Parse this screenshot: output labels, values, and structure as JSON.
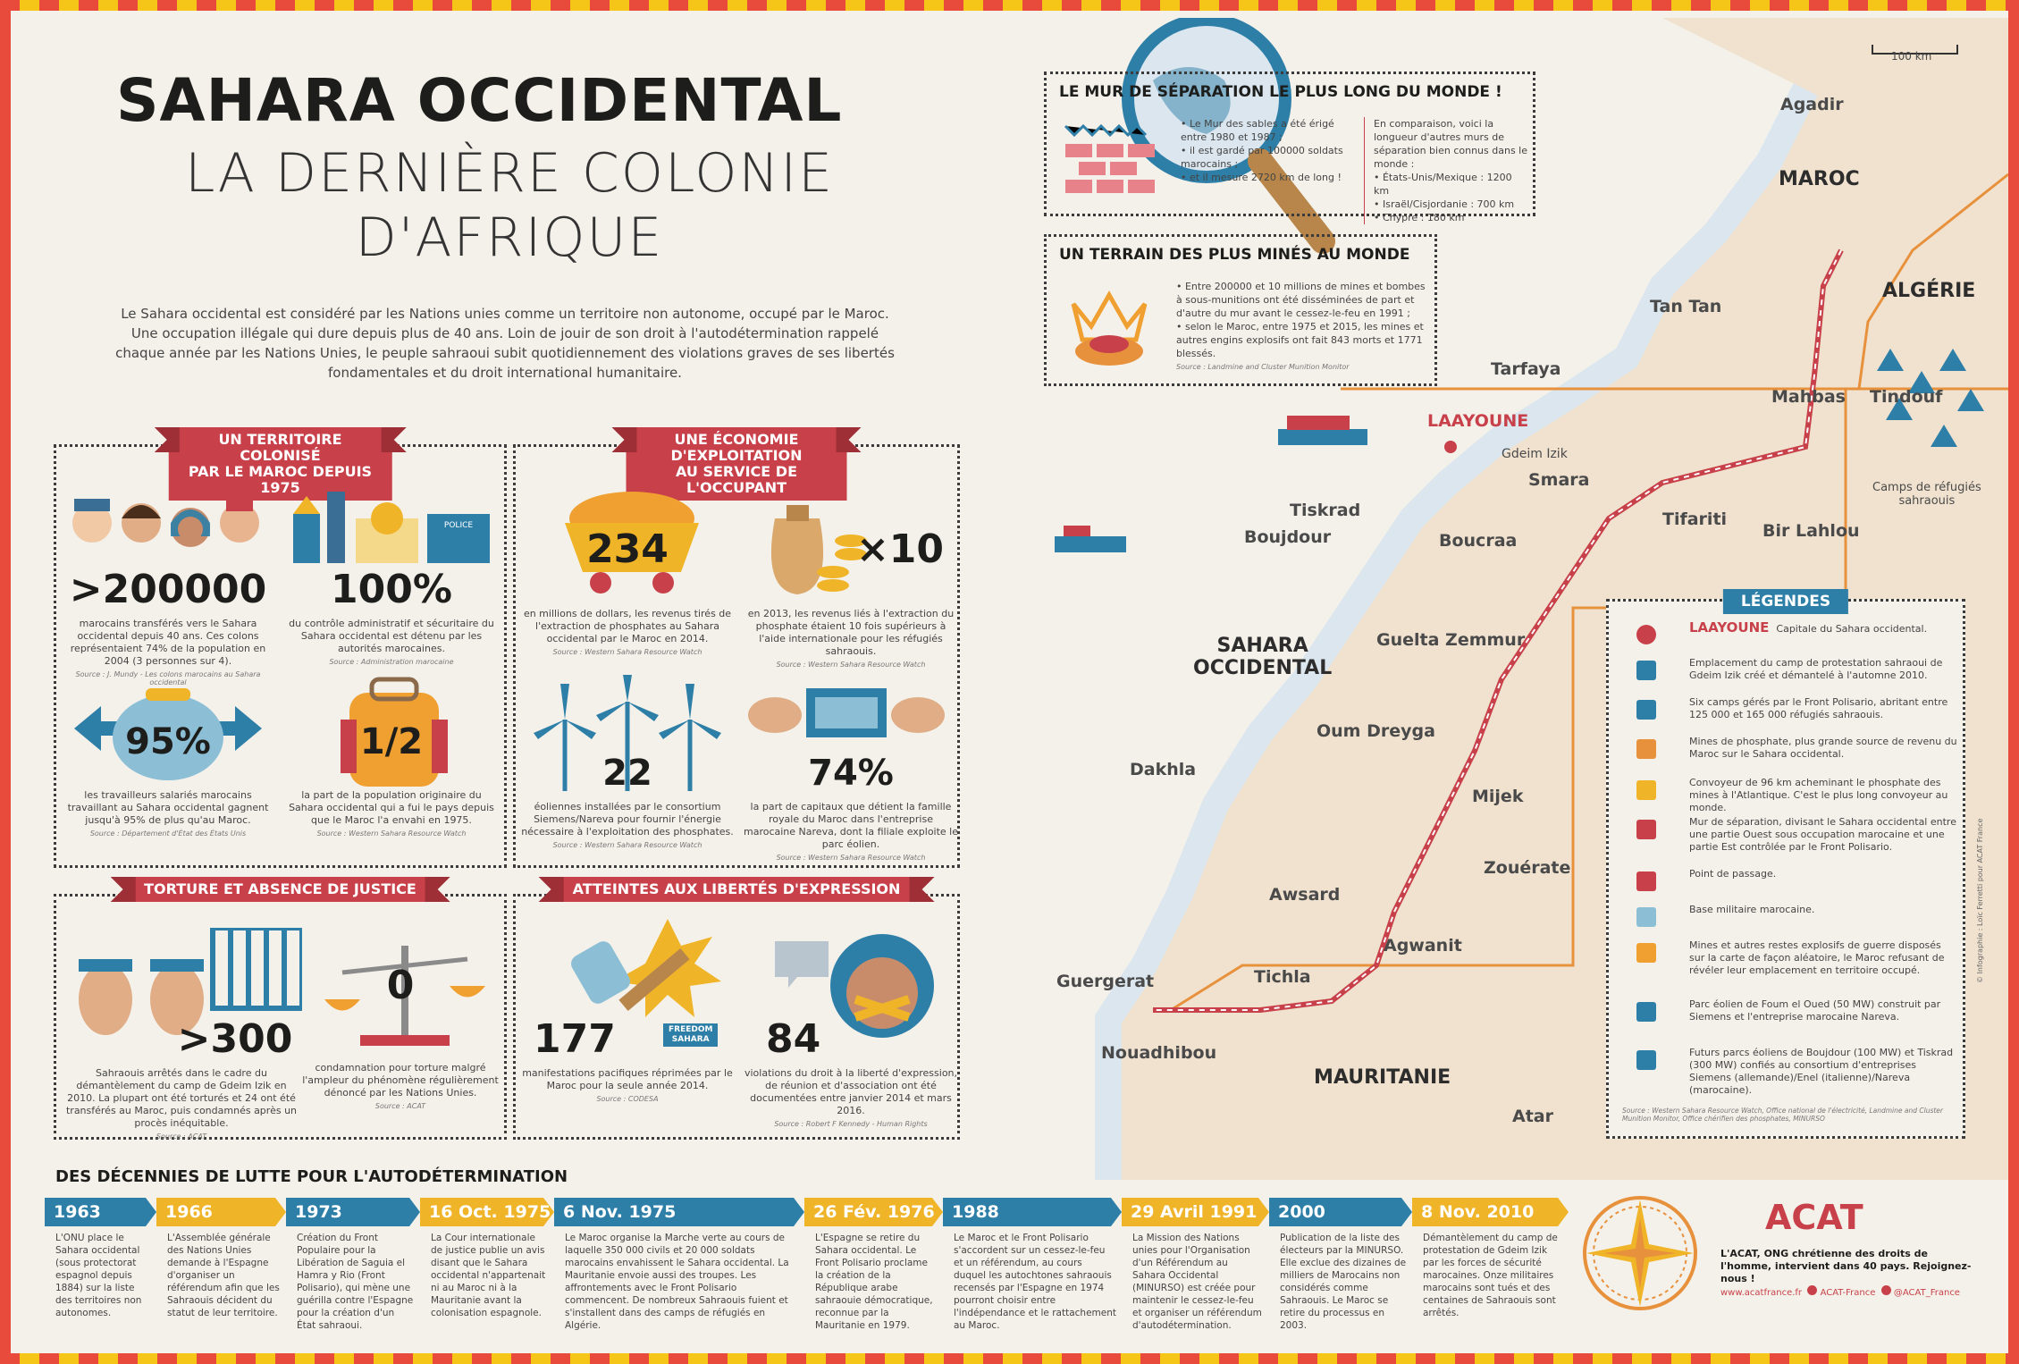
{
  "title": {
    "line1": "SAHARA OCCIDENTAL",
    "line2": "LA DERNIÈRE COLONIE",
    "line3": "D'AFRIQUE"
  },
  "intro": "Le Sahara occidental est considéré par les Nations unies comme un territoire non autonome, occupé par le Maroc. Une occupation illégale qui dure depuis plus de 40 ans. Loin de jouir de son droit à l'autodétermination rappelé chaque année par les Nations Unies, le peuple sahraoui subit quotidiennement des violations graves de ses libertés fondamentales et du droit international humanitaire.",
  "colors": {
    "red": "#c8414a",
    "blue": "#2e7fa8",
    "yellow": "#f0b429",
    "sand": "#f0e2cf",
    "ink": "#1d1d1b"
  },
  "box1": {
    "title": "UN TERRITOIRE COLONISÉ\nPAR LE MAROC DEPUIS 1975",
    "s1": {
      "num": ">200000",
      "text": "marocains transférés vers le Sahara occidental depuis 40 ans. Ces colons représentaient 74% de la population en 2004 (3 personnes sur 4).",
      "src": "Source : J. Mundy - Les colons marocains au Sahara occidental"
    },
    "s2": {
      "num": "100%",
      "text": "du contrôle administratif et sécuritaire du Sahara occidental est détenu par les autorités marocaines.",
      "src": "Source : Administration marocaine"
    },
    "s3": {
      "num": "95%",
      "text": "les travailleurs salariés marocains travaillant au Sahara occidental gagnent jusqu'à 95% de plus qu'au Maroc.",
      "src": "Source : Département d'État des États Unis"
    },
    "s4": {
      "num": "1/2",
      "text": "la part de la population originaire du Sahara occidental qui a fui le pays depuis que le Maroc l'a envahi en 1975.",
      "src": "Source : Western Sahara Resource Watch"
    },
    "police": "POLICE"
  },
  "box2": {
    "title": "UNE ÉCONOMIE D'EXPLOITATION\nAU SERVICE DE L'OCCUPANT",
    "s1": {
      "num": "234",
      "text": "en millions de dollars, les revenus tirés de l'extraction de phosphates au Sahara occidental par le Maroc en 2014.",
      "src": "Source : Western Sahara Resource Watch"
    },
    "s2": {
      "num": "×10",
      "text": "en 2013, les revenus liés à l'extraction du phosphate étaient 10 fois supérieurs à l'aide internationale pour les réfugiés sahraouis.",
      "src": "Source : Western Sahara Resource Watch"
    },
    "s3": {
      "num": "22",
      "text": "éoliennes installées par le consortium Siemens/Nareva pour fournir l'énergie nécessaire à l'exploitation des phosphates.",
      "src": "Source : Western Sahara Resource Watch"
    },
    "s4": {
      "num": "74%",
      "text": "la part de capitaux que détient la famille royale du Maroc dans l'entreprise marocaine Nareva, dont la filiale exploite le parc éolien.",
      "src": "Source : Western Sahara Resource Watch"
    }
  },
  "box3": {
    "title": "TORTURE ET ABSENCE DE JUSTICE",
    "s1": {
      "num": ">300",
      "text": "Sahraouis arrêtés dans le cadre du démantèlement du camp de Gdeim Izik en 2010. La plupart ont été torturés et 24 ont été transférés au Maroc, puis condamnés après un procès inéquitable.",
      "src": "Source : ACAT"
    },
    "s2": {
      "num": "0",
      "text": "condamnation pour torture malgré l'ampleur du phénomène régulièrement dénoncé par les Nations Unies.",
      "src": "Source : ACAT"
    }
  },
  "box4": {
    "title": "ATTEINTES AUX LIBERTÉS D'EXPRESSION",
    "s1": {
      "num": "177",
      "text": "manifestations pacifiques réprimées par le Maroc pour la seule année 2014.",
      "src": "Source : CODESA"
    },
    "s2": {
      "num": "84",
      "text": "violations du droit à la liberté d'expression, de réunion et d'association ont été documentées entre janvier 2014 et mars 2016.",
      "src": "Source : Robert F Kennedy - Human Rights"
    },
    "sign": "FREEDOM\nSAHARA"
  },
  "wall": {
    "title": "LE MUR DE SÉPARATION LE PLUS LONG DU MONDE !",
    "b1": "• Le Mur des sables a été érigé entre 1980 et 1987 ;",
    "b2": "• il est gardé par 100000 soldats marocains ;",
    "b3": "• et il mesure 2720 km de long !",
    "c0": "En comparaison, voici la longueur d'autres murs de séparation bien connus dans le monde :",
    "c1": "• États-Unis/Mexique : 1200 km",
    "c2": "• Israël/Cisjordanie : 700 km",
    "c3": "• Chypre : 180 km"
  },
  "mines": {
    "title": "UN TERRAIN DES PLUS MINÉS AU MONDE",
    "b1": "• Entre 200000 et 10 millions de mines et bombes à sous-munitions ont été disséminées de part et d'autre du mur avant le cessez-le-feu en 1991 ;",
    "b2": "• selon le Maroc, entre 1975 et 2015, les mines et autres engins explosifs ont fait 843 morts et 1771 blessés.",
    "src": "Source : Landmine and Cluster Munition Monitor"
  },
  "map": {
    "scale": "100 km",
    "countries": {
      "maroc": "MAROC",
      "algerie": "ALGÉRIE",
      "sahara": "SAHARA\nOCCIDENTAL",
      "mauritanie": "MAURITANIE"
    },
    "capital": "LAAYOUNE",
    "cities": [
      "Agadir",
      "Tan Tan",
      "Tarfaya",
      "Mahbas",
      "Tindouf",
      "Gdeim Izik",
      "Smara",
      "Tiskrad",
      "Boujdour",
      "Boucraa",
      "Tifariti",
      "Bir Lahlou",
      "Guelta Zemmur",
      "Oum Dreyga",
      "Dakhla",
      "Mijek",
      "Zouérate",
      "Awsard",
      "Agwanit",
      "Guergerat",
      "Tichla",
      "Nouadhibou",
      "Atar"
    ],
    "camps": "Camps de réfugiés\nsahraouis"
  },
  "legend": {
    "title": "LÉGENDES",
    "items": [
      {
        "name": "capital-dot",
        "label": "LAAYOUNE",
        "text": "Capitale du Sahara occidental."
      },
      {
        "name": "protest-camp",
        "text": "Emplacement du camp de protestation sahraoui de Gdeim Izik créé et démantelé à l'automne 2010."
      },
      {
        "name": "refugee-camps",
        "text": "Six camps gérés par le Front Polisario, abritant entre 125 000 et 165 000 réfugiés sahraouis."
      },
      {
        "name": "phosphate-mines",
        "text": "Mines de phosphate, plus grande source de revenu du Maroc sur le Sahara occidental."
      },
      {
        "name": "conveyor",
        "text": "Convoyeur de 96 km acheminant le phosphate des mines à l'Atlantique. C'est le plus long convoyeur au monde."
      },
      {
        "name": "wall",
        "text": "Mur de séparation, divisant le Sahara occidental entre une partie Ouest sous occupation marocaine et une partie Est contrôlée par le Front Polisario."
      },
      {
        "name": "crossing",
        "text": "Point de passage."
      },
      {
        "name": "military-base",
        "text": "Base militaire marocaine."
      },
      {
        "name": "mines",
        "text": "Mines et autres restes explosifs de guerre disposés sur la carte de façon aléatoire, le Maroc refusant de révéler leur emplacement en territoire occupé."
      },
      {
        "name": "wind-farm",
        "text": "Parc éolien de Foum el Oued (50 MW) construit par Siemens et l'entreprise marocaine Nareva."
      },
      {
        "name": "future-wind",
        "text": "Futurs parcs éoliens de Boujdour (100 MW) et Tiskrad (300 MW) confiés au consortium d'entreprises Siemens (allemande)/Enel (italienne)/Nareva (marocaine)."
      }
    ],
    "src": "Source : Western Sahara Resource Watch, Office national de l'électricité, Landmine and Cluster Munition Monitor, Office chérifien des phosphates, MINURSO"
  },
  "timeline": {
    "title": "DES DÉCENNIES DE LUTTE POUR L'AUTODÉTERMINATION",
    "items": [
      {
        "date": "1963",
        "text": "L'ONU place le Sahara occidental (sous protectorat espagnol depuis 1884) sur la liste des territoires non autonomes."
      },
      {
        "date": "1966",
        "text": "L'Assemblée générale des Nations Unies demande à l'Espagne d'organiser un référendum afin que les Sahraouis décident du statut de leur territoire."
      },
      {
        "date": "1973",
        "text": "Création du Front Populaire pour la Libération de Saguia el Hamra y Rio (Front Polisario), qui mène une guérilla contre l'Espagne pour la création d'un État sahraoui."
      },
      {
        "date": "16 Oct. 1975",
        "text": "La Cour internationale de justice publie un avis disant que le Sahara occidental n'appartenait ni au Maroc ni à la Mauritanie avant la colonisation espagnole."
      },
      {
        "date": "6 Nov. 1975",
        "text": "Le Maroc organise la Marche verte au cours de laquelle 350 000 civils et 20 000 soldats marocains envahissent le Sahara occidental. La Mauritanie envoie aussi des troupes. Les affrontements avec le Front Polisario commencent. De nombreux Sahraouis fuient et s'installent dans des camps de réfugiés en Algérie."
      },
      {
        "date": "26 Fév. 1976",
        "text": "L'Espagne se retire du Sahara occidental. Le Front Polisario proclame la création de la République arabe sahraouie démocratique, reconnue par la Mauritanie en 1979."
      },
      {
        "date": "1988",
        "text": "Le Maroc et le Front Polisario s'accordent sur un cessez-le-feu et un référendum, au cours duquel les autochtones sahraouis recensés par l'Espagne en 1974 pourront choisir entre l'indépendance et le rattachement au Maroc."
      },
      {
        "date": "29 Avril 1991",
        "text": "La Mission des Nations unies pour l'Organisation d'un Référendum au Sahara Occidental (MINURSO) est créée pour maintenir le cessez-le-feu et organiser un référendum d'autodétermination."
      },
      {
        "date": "2000",
        "text": "Publication de la liste des électeurs par la MINURSO. Elle exclue des dizaines de milliers de Marocains non considérés comme Sahraouis. Le Maroc se retire du processus en 2003."
      },
      {
        "date": "8 Nov. 2010",
        "text": "Démantèlement du camp de protestation de Gdeim Izik par les forces de sécurité marocaines. Onze militaires marocains sont tués et des centaines de Sahraouis sont arrêtés."
      }
    ]
  },
  "acat": {
    "logo": "ACAT",
    "tagline": "L'ACAT, ONG chrétienne des droits de l'homme, intervient dans 40 pays. Rejoignez-nous !",
    "site": "www.acatfrance.fr",
    "fb": "ACAT-France",
    "tw": "@ACAT_France"
  },
  "credit": "© Infographie : Loïc Ferretti pour ACAT France"
}
